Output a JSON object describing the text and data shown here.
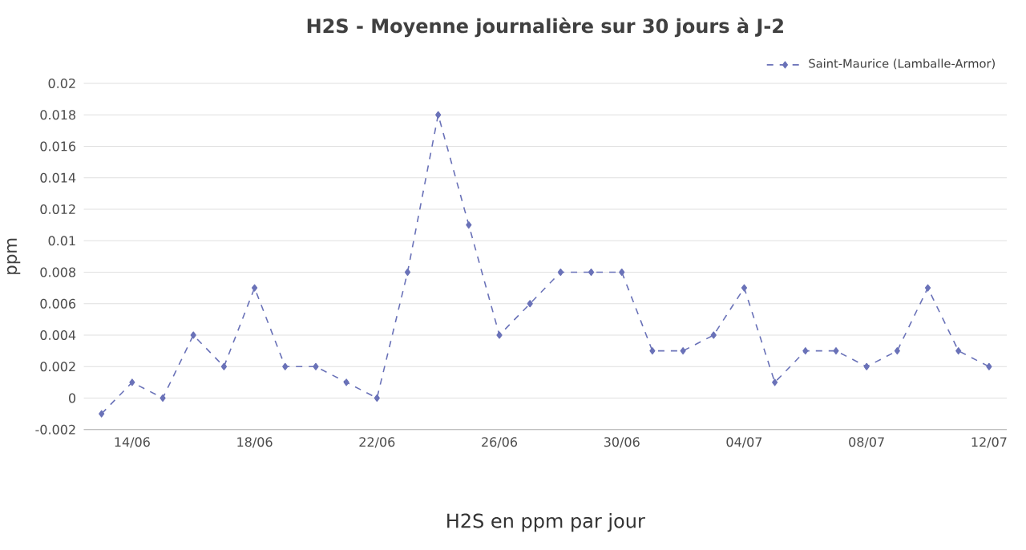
{
  "chart_data": {
    "type": "line",
    "title": "H2S - Moyenne journalière sur 30 jours à J-2",
    "xlabel": "H2S en ppm par jour",
    "ylabel": "ppm",
    "categories": [
      null,
      "14/06",
      null,
      null,
      null,
      "18/06",
      null,
      null,
      null,
      "22/06",
      null,
      null,
      null,
      "26/06",
      null,
      null,
      null,
      "30/06",
      null,
      null,
      null,
      "04/07",
      null,
      null,
      null,
      "08/07",
      null,
      null,
      null,
      "12/07"
    ],
    "series": [
      {
        "name": "Saint-Maurice (Lamballe-Armor)",
        "color": "#6a72b8",
        "values": [
          -0.001,
          0.001,
          0,
          0.004,
          0.002,
          0.007,
          0.002,
          0.002,
          0.001,
          0,
          0.008,
          0.018,
          0.011,
          0.004,
          0.006,
          0.008,
          0.008,
          0.008,
          0.003,
          0.003,
          0.004,
          0.007,
          0.001,
          0.003,
          0.003,
          0.002,
          0.003,
          0.007,
          0.003,
          0.002
        ]
      }
    ],
    "ylim": [
      -0.002,
      0.02
    ],
    "yticks": [
      -0.002,
      0,
      0.002,
      0.004,
      0.006,
      0.008,
      0.01,
      0.012,
      0.014,
      0.016,
      0.018,
      0.02
    ],
    "grid": "y",
    "legend": "top right",
    "marker": "diamond",
    "line_style": "dashed"
  }
}
